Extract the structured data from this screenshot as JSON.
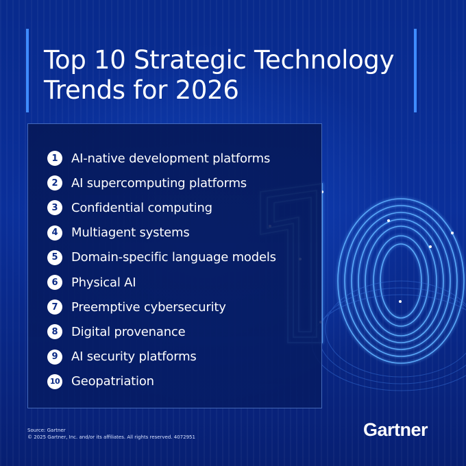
{
  "title": {
    "line1": "Top 10 Strategic Technology",
    "line2": "Trends for 2026"
  },
  "trends": [
    {
      "number": "1",
      "label": "AI-native development platforms"
    },
    {
      "number": "2",
      "label": "AI supercomputing platforms"
    },
    {
      "number": "3",
      "label": "Confidential computing"
    },
    {
      "number": "4",
      "label": "Multiagent systems"
    },
    {
      "number": "5",
      "label": "Domain-specific language models"
    },
    {
      "number": "6",
      "label": "Physical AI"
    },
    {
      "number": "7",
      "label": "Preemptive cybersecurity"
    },
    {
      "number": "8",
      "label": "Digital provenance"
    },
    {
      "number": "9",
      "label": "AI security platforms"
    },
    {
      "number": "10",
      "label": "Geopatriation"
    }
  ],
  "footer": {
    "source": "Source: Gartner",
    "copyright": "© 2025 Gartner, Inc. and/or its affiliates. All rights reserved. 4072951"
  },
  "brand": "Gartner",
  "colors": {
    "background": "#0a2f9a",
    "accent": "#3f8cff",
    "text": "#ffffff",
    "badge_text": "#0a2a85"
  },
  "icons": {
    "graphic": "big-number-10-neon-graphic"
  }
}
